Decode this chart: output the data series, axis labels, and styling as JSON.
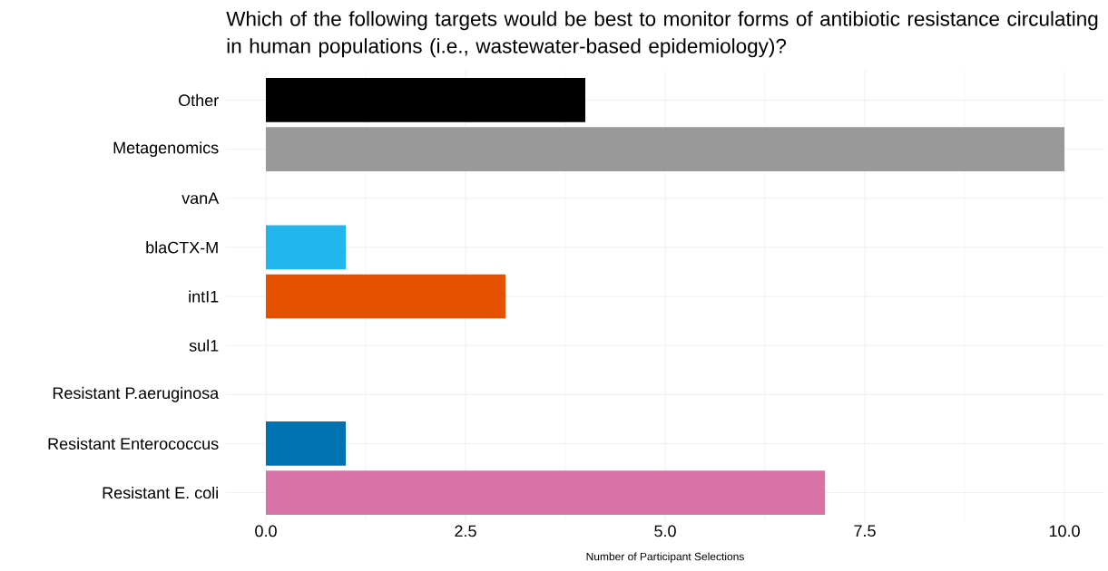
{
  "chart_data": {
    "type": "bar",
    "orientation": "horizontal",
    "title": "Which of the following targets would be best to monitor forms of antibiotic resistance circulating in human populations (i.e., wastewater-based epidemiology)?",
    "xlabel": "Number of Participant Selections",
    "categories": [
      "Other",
      "Metagenomics",
      "vanA",
      "blaCTX-M",
      "intI1",
      "sul1",
      "Resistant P.aeruginosa",
      "Resistant Enterococcus",
      "Resistant E. coli"
    ],
    "values": [
      4,
      10,
      0,
      1,
      3,
      0,
      0,
      1,
      7
    ],
    "colors": [
      "#000000",
      "#999999",
      "#E69F00",
      "#22B6EE",
      "#E65100",
      "#009E73",
      "#F0E442",
      "#0072B2",
      "#D873A7"
    ],
    "xlim": [
      -0.5,
      10.5
    ],
    "xticks": [
      {
        "value": 0,
        "label": "0.0"
      },
      2.5,
      {
        "value": 5,
        "label": "5.0"
      },
      7.5,
      {
        "value": 10,
        "label": "10.0"
      }
    ],
    "grid": true
  }
}
